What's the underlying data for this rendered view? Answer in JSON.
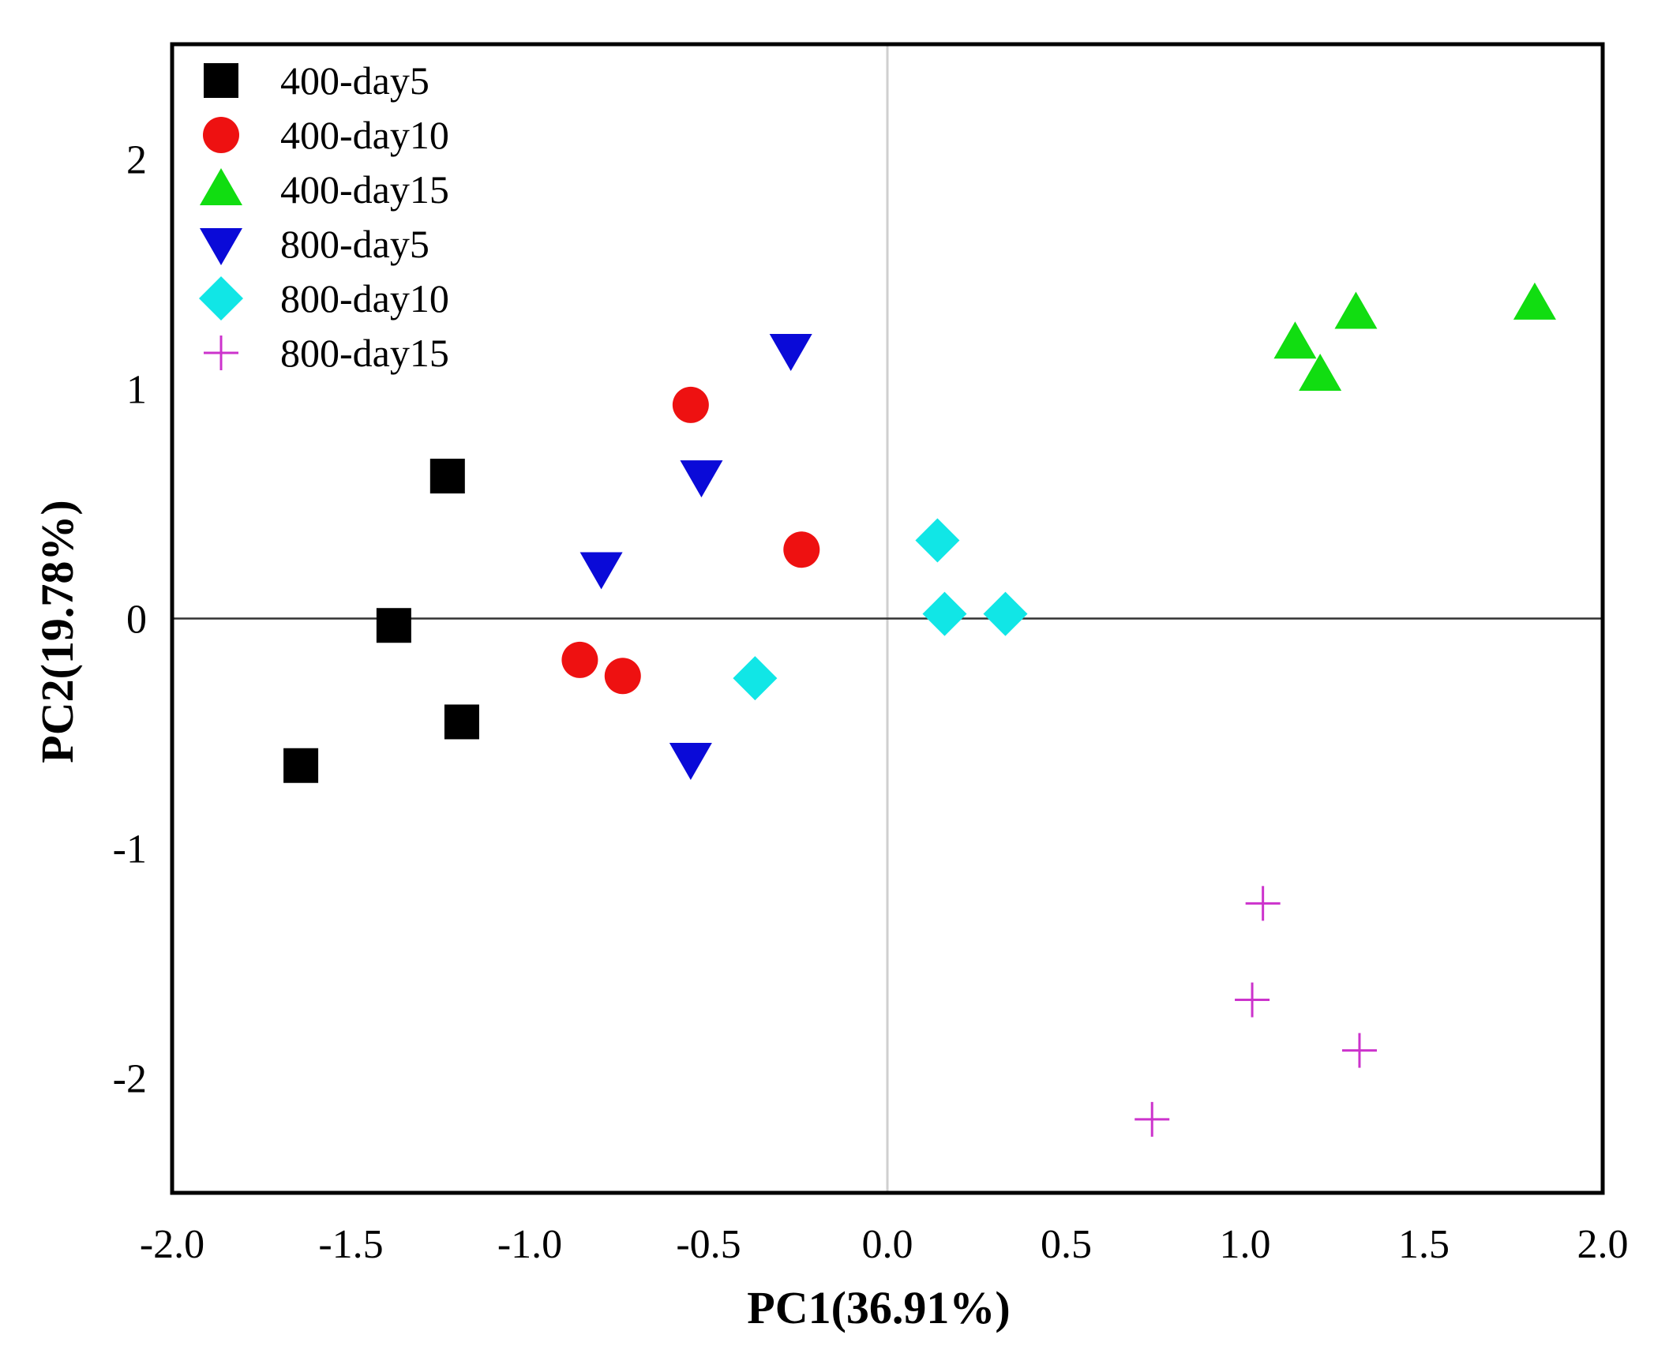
{
  "chart_data": {
    "type": "scatter",
    "title": "",
    "xlabel": "PC1(36.91%)",
    "ylabel": "PC2(19.78%)",
    "xlim": [
      -2.0,
      2.0
    ],
    "ylim": [
      -2.5,
      2.5
    ],
    "xticks": [
      -2.0,
      -1.5,
      -1.0,
      -0.5,
      0.0,
      0.5,
      1.0,
      1.5,
      2.0
    ],
    "xtick_labels": [
      "-2.0",
      "-1.5",
      "-1.0",
      "-0.5",
      "0.0",
      "0.5",
      "1.0",
      "1.5",
      "2.0"
    ],
    "yticks": [
      2,
      1,
      0,
      -1,
      -2
    ],
    "ytick_labels": [
      "2",
      "1",
      "0",
      "-1",
      "-2"
    ],
    "grid": false,
    "zero_lines": true,
    "legend_position": "top-left",
    "series": [
      {
        "name": "400-day5",
        "marker": "square",
        "color": "#000000",
        "x": [
          -1.23,
          -1.38,
          -1.19,
          -1.64
        ],
        "y": [
          0.62,
          -0.03,
          -0.45,
          -0.64
        ]
      },
      {
        "name": "400-day10",
        "marker": "circle",
        "color": "#ee1111",
        "x": [
          -0.55,
          -0.24,
          -0.86,
          -0.74
        ],
        "y": [
          0.93,
          0.3,
          -0.18,
          -0.25
        ]
      },
      {
        "name": "400-day15",
        "marker": "triangle-up",
        "color": "#11dd11",
        "x": [
          1.81,
          1.31,
          1.14,
          1.21
        ],
        "y": [
          1.37,
          1.33,
          1.2,
          1.06
        ]
      },
      {
        "name": "800-day5",
        "marker": "triangle-down",
        "color": "#0a0ad8",
        "x": [
          -0.27,
          -0.52,
          -0.8,
          -0.55
        ],
        "y": [
          1.17,
          0.62,
          0.22,
          -0.61
        ]
      },
      {
        "name": "800-day10",
        "marker": "diamond",
        "color": "#11e6e6",
        "x": [
          0.14,
          0.16,
          0.33,
          -0.37
        ],
        "y": [
          0.34,
          0.02,
          0.02,
          -0.26
        ]
      },
      {
        "name": "800-day15",
        "marker": "plus",
        "color": "#cc33cc",
        "x": [
          1.05,
          1.02,
          1.32,
          0.74
        ],
        "y": [
          -1.24,
          -1.66,
          -1.88,
          -2.18
        ]
      }
    ]
  }
}
